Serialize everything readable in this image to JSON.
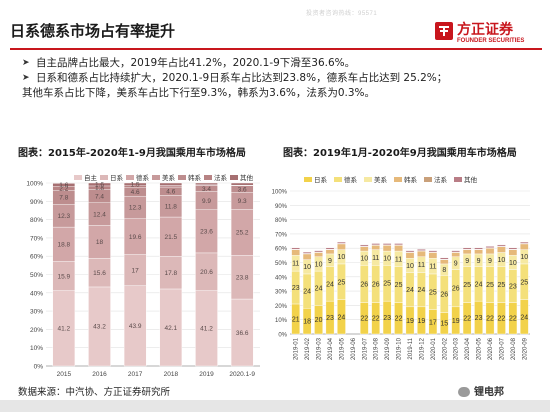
{
  "header": {
    "watermark": "投资者咨询热线：95571",
    "title": "日系德系市场占有率提升",
    "logo_cn": "方正证券",
    "logo_en": "FOUNDER SECURITIES",
    "brand_color": "#c8161d"
  },
  "bullets": [
    {
      "text": "自主品牌占比最大，2019年占比41.2%，2020.1-9下滑至36.6%。",
      "line2": ""
    },
    {
      "text": "日系和德系占比持续扩大，2020.1-9日系车占比达到23.8%，德系车占比达到 25.2%；",
      "line2": "其他车系占比下降，美系车占比下行至9.3%，韩系为3.6%，法系为0.3%。"
    }
  ],
  "figures": {
    "left_title": "图表：2015年-2020年1-9月我国乘用车市场格局",
    "right_title": "图表：2019年1月-2020年9月我国乘用车市场格局"
  },
  "footer": {
    "source": "数据来源：中汽协、方正证券研究所",
    "wechat": "锂电邦"
  },
  "chart_data": [
    {
      "type": "bar",
      "stacked": true,
      "categories": [
        "2015",
        "2016",
        "2017",
        "2018",
        "2019",
        "2020.1-9"
      ],
      "series": [
        {
          "name": "自主",
          "color": "#e7c9c9",
          "values": [
            41.2,
            43.2,
            43.9,
            42.1,
            41.2,
            36.6
          ]
        },
        {
          "name": "日系",
          "color": "#dcb8b8",
          "values": [
            15.9,
            15.6,
            17.0,
            17.8,
            20.6,
            23.8
          ]
        },
        {
          "name": "德系",
          "color": "#d2a7a8",
          "values": [
            18.8,
            18.0,
            19.6,
            21.5,
            23.6,
            25.2
          ]
        },
        {
          "name": "美系",
          "color": "#c79a9b",
          "values": [
            12.3,
            12.4,
            12.3,
            11.8,
            9.9,
            9.3
          ]
        },
        {
          "name": "韩系",
          "color": "#bd8d8e",
          "values": [
            7.8,
            7.4,
            4.6,
            4.6,
            3.4,
            3.6
          ]
        },
        {
          "name": "法系",
          "color": "#b78384",
          "values": [
            2.2,
            1.8,
            1.1,
            0.9,
            0.3,
            0.3
          ]
        },
        {
          "name": "其他",
          "color": "#a66f71",
          "values": [
            1.6,
            1.6,
            1.5,
            1.3,
            1.0,
            1.2
          ]
        }
      ],
      "ylim": [
        0,
        100
      ],
      "yticks": [
        "0%",
        "10%",
        "20%",
        "30%",
        "40%",
        "50%",
        "60%",
        "70%",
        "80%",
        "90%",
        "100%"
      ],
      "legend": "top",
      "grid": true
    },
    {
      "type": "bar",
      "stacked": true,
      "categories": [
        "2019-01",
        "2019-02",
        "2019-03",
        "2019-04",
        "2019-05",
        "2019-06",
        "2019-07",
        "2019-08",
        "2019-09",
        "2019-10",
        "2019-11",
        "2019-12",
        "2020-01",
        "2020-02",
        "2020-03",
        "2020-04",
        "2020-05",
        "2020-06",
        "2020-07",
        "2020-08",
        "2020-09"
      ],
      "series": [
        {
          "name": "日系",
          "color": "#f2d24a",
          "values": [
            21,
            18,
            20,
            23,
            24,
            0,
            22,
            22,
            23,
            22,
            19,
            19,
            17,
            15,
            19,
            22,
            23,
            22,
            22,
            22,
            24
          ]
        },
        {
          "name": "德系",
          "color": "#f4e07a",
          "values": [
            23,
            24,
            24,
            24,
            25,
            0,
            26,
            26,
            25,
            25,
            24,
            24,
            25,
            26,
            26,
            25,
            24,
            25,
            25,
            23,
            25
          ]
        },
        {
          "name": "美系",
          "color": "#f6e9a2",
          "values": [
            11,
            10,
            10,
            9,
            10,
            0,
            10,
            11,
            10,
            11,
            10,
            11,
            11,
            8,
            9,
            9,
            9,
            9,
            10,
            10,
            10
          ]
        },
        {
          "name": "韩系",
          "color": "#e6b97a",
          "values": [
            4,
            4,
            3,
            3,
            4,
            0,
            3,
            3,
            4,
            4,
            4,
            4,
            4,
            3,
            3,
            3,
            3,
            4,
            4,
            4,
            4
          ]
        },
        {
          "name": "法系",
          "color": "#c9a07a",
          "values": [
            0.3,
            0.3,
            0.3,
            0.3,
            0.3,
            0,
            0.3,
            0.3,
            0.3,
            0.3,
            0.3,
            0.3,
            0.3,
            0.3,
            0.3,
            0.3,
            0.3,
            0.3,
            0.3,
            0.3,
            0.3
          ]
        },
        {
          "name": "其他",
          "color": "#b97d86",
          "values": [
            1,
            1,
            1,
            1,
            1,
            0,
            1,
            1,
            1,
            1,
            1,
            1,
            1,
            1,
            1,
            1,
            1,
            1,
            1,
            1,
            1
          ]
        }
      ],
      "ylim": [
        0,
        100
      ],
      "yticks": [
        "0%",
        "10%",
        "20%",
        "30%",
        "40%",
        "50%",
        "60%",
        "70%",
        "80%",
        "90%",
        "100%"
      ],
      "legend": "top",
      "grid": true
    }
  ]
}
